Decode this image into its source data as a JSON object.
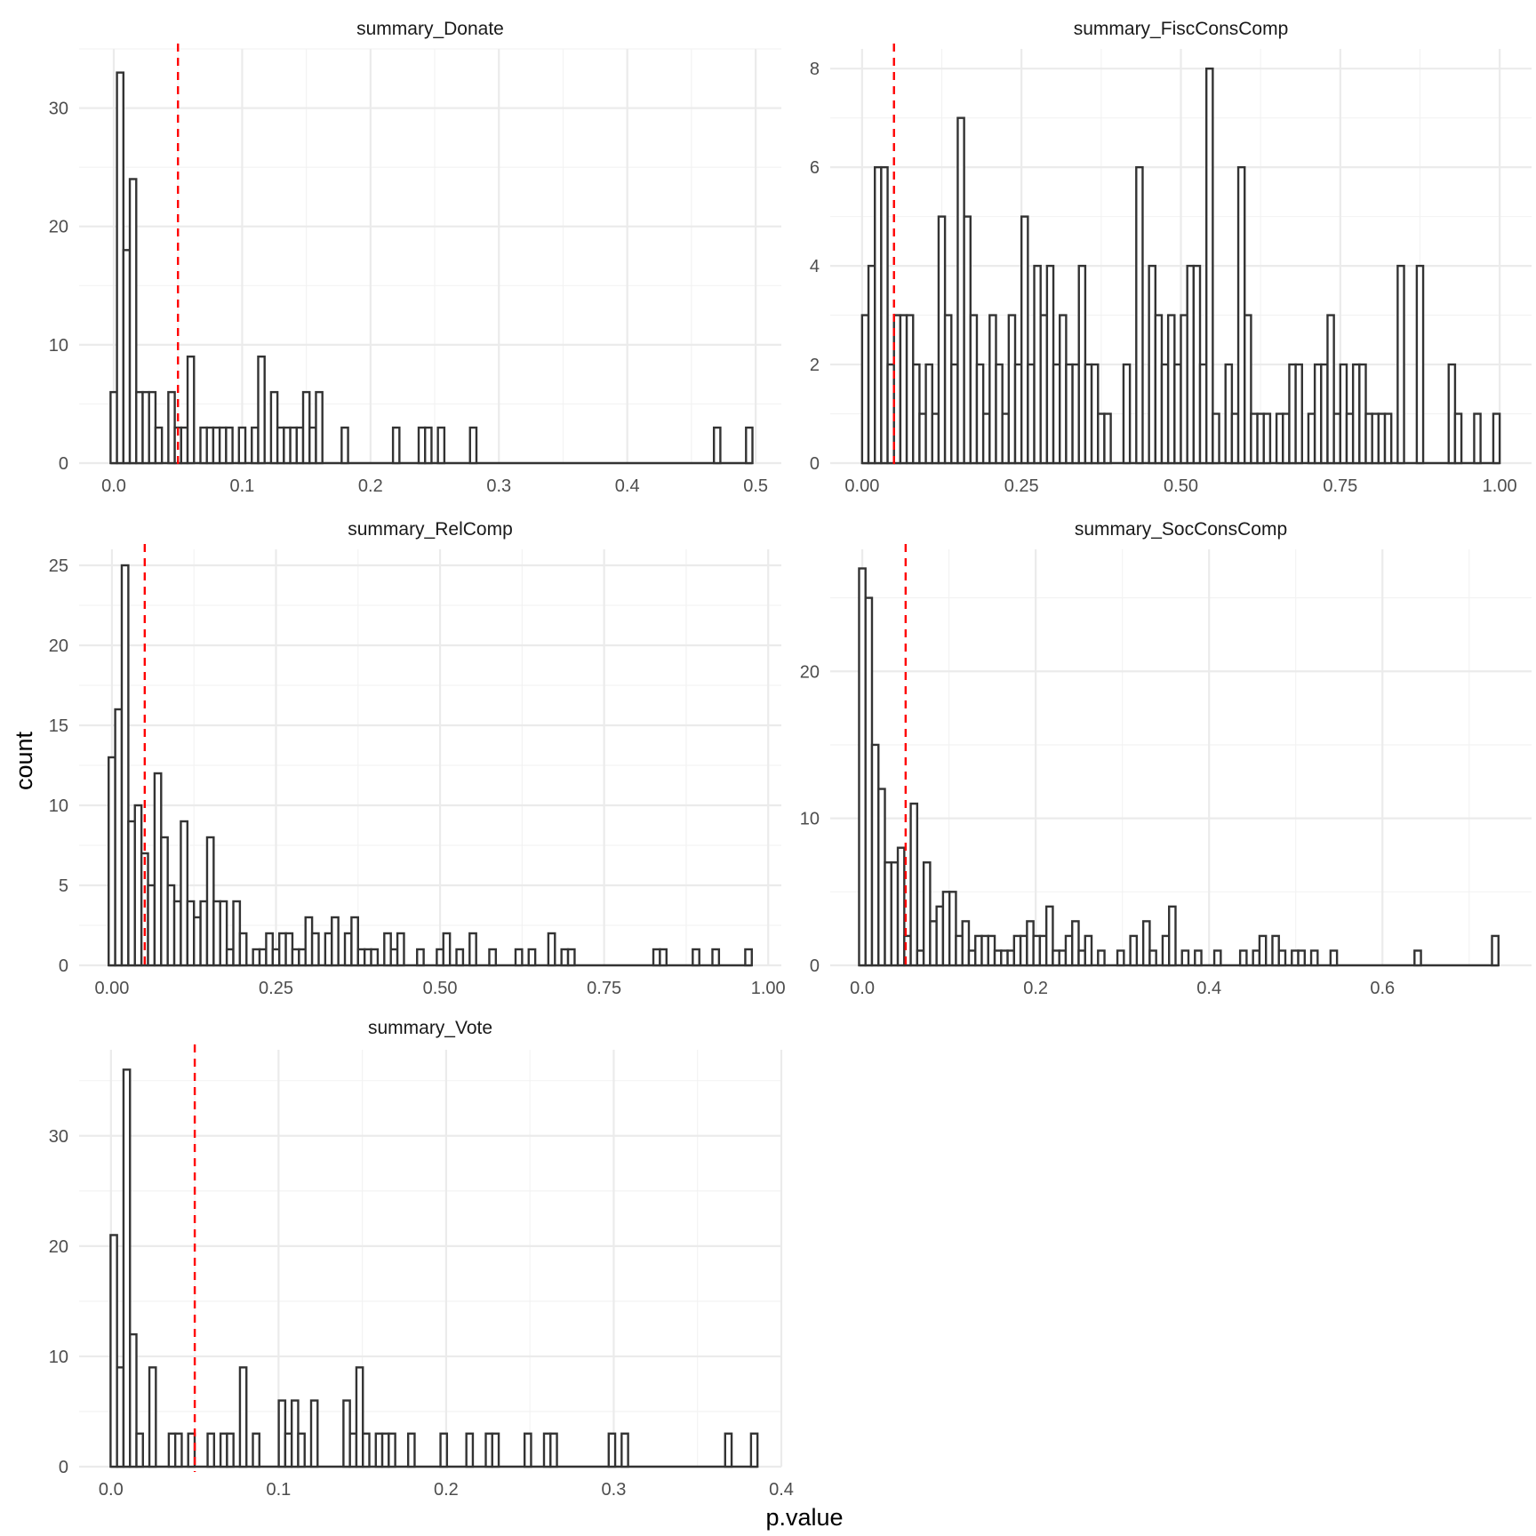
{
  "figure": {
    "xlabel": "p.value",
    "ylabel": "count",
    "reference_line": {
      "x": 0.05,
      "color": "#ff0000",
      "style": "dashed"
    },
    "bar_outline_color": "#333333",
    "bar_fill_color": "#ffffff"
  },
  "chart_data": [
    {
      "type": "bar",
      "title": "summary_Donate",
      "xlabel": "p.value",
      "ylabel": "count",
      "bin_width": 0.005,
      "first_bin_center": 0.0,
      "counts": [
        6,
        33,
        18,
        24,
        6,
        6,
        6,
        3,
        0,
        6,
        3,
        3,
        9,
        0,
        3,
        3,
        3,
        3,
        3,
        0,
        3,
        0,
        3,
        9,
        0,
        6,
        3,
        3,
        3,
        3,
        6,
        3,
        6,
        0,
        0,
        0,
        3,
        0,
        0,
        0,
        0,
        0,
        0,
        0,
        3,
        0,
        0,
        0,
        3,
        3,
        0,
        3,
        0,
        0,
        0,
        0,
        3,
        0,
        0,
        0,
        0,
        0,
        0,
        0,
        0,
        0,
        0,
        0,
        0,
        0,
        0,
        0,
        0,
        0,
        0,
        0,
        0,
        0,
        0,
        0,
        0,
        0,
        0,
        0,
        0,
        0,
        0,
        0,
        0,
        0,
        0,
        0,
        0,
        0,
        3,
        0,
        0,
        0,
        0,
        3
      ],
      "xlim": [
        -0.027,
        0.52
      ],
      "ylim": [
        0,
        35
      ],
      "x_ticks": [
        0.0,
        0.1,
        0.2,
        0.3,
        0.4,
        0.5
      ],
      "x_tick_labels": [
        "0.0",
        "0.1",
        "0.2",
        "0.3",
        "0.4",
        "0.5"
      ],
      "y_ticks": [
        0,
        10,
        20,
        30
      ],
      "y_tick_labels": [
        "0",
        "10",
        "20",
        "30"
      ],
      "vline": 0.05
    },
    {
      "type": "bar",
      "title": "summary_FiscConsComp",
      "xlabel": "p.value",
      "ylabel": "count",
      "bin_width": 0.01,
      "first_bin_center": 0.005,
      "counts": [
        3,
        4,
        6,
        6,
        2,
        3,
        3,
        3,
        2,
        1,
        2,
        1,
        5,
        3,
        2,
        7,
        5,
        3,
        2,
        1,
        3,
        2,
        1,
        3,
        2,
        5,
        2,
        4,
        3,
        4,
        2,
        3,
        2,
        2,
        4,
        2,
        2,
        1,
        1,
        0,
        0,
        2,
        0,
        6,
        0,
        4,
        3,
        2,
        3,
        2,
        3,
        4,
        4,
        2,
        8,
        1,
        0,
        2,
        1,
        6,
        3,
        1,
        1,
        1,
        0,
        1,
        1,
        2,
        2,
        0,
        1,
        2,
        2,
        3,
        1,
        2,
        1,
        2,
        2,
        1,
        1,
        1,
        1,
        0,
        4,
        0,
        0,
        4,
        0,
        0,
        0,
        0,
        2,
        1,
        0,
        0,
        1,
        0,
        0,
        1
      ],
      "xlim": [
        -0.05,
        1.05
      ],
      "ylim": [
        0,
        8.4
      ],
      "x_ticks": [
        0.0,
        0.25,
        0.5,
        0.75,
        1.0
      ],
      "x_tick_labels": [
        "0.00",
        "0.25",
        "0.50",
        "0.75",
        "1.00"
      ],
      "y_ticks": [
        0,
        2,
        4,
        6,
        8
      ],
      "y_tick_labels": [
        "0",
        "2",
        "4",
        "6",
        "8"
      ],
      "vline": 0.05
    },
    {
      "type": "bar",
      "title": "summary_RelComp",
      "xlabel": "p.value",
      "ylabel": "count",
      "bin_width": 0.01,
      "first_bin_center": 0.0,
      "counts": [
        13,
        16,
        25,
        9,
        10,
        7,
        5,
        12,
        8,
        5,
        4,
        9,
        4,
        3,
        4,
        8,
        4,
        4,
        1,
        4,
        2,
        0,
        1,
        1,
        2,
        1,
        2,
        2,
        1,
        1,
        3,
        2,
        0,
        2,
        3,
        0,
        2,
        3,
        1,
        1,
        1,
        0,
        2,
        1,
        2,
        0,
        0,
        1,
        0,
        0,
        1,
        2,
        0,
        1,
        0,
        2,
        0,
        0,
        1,
        0,
        0,
        0,
        1,
        0,
        1,
        0,
        0,
        2,
        0,
        1,
        1,
        0,
        0,
        0,
        0,
        0,
        0,
        0,
        0,
        0,
        0,
        0,
        0,
        1,
        1,
        0,
        0,
        0,
        0,
        1,
        0,
        0,
        1,
        0,
        0,
        0,
        0,
        1
      ],
      "xlim": [
        -0.05,
        1.02
      ],
      "ylim": [
        0,
        26
      ],
      "x_ticks": [
        0.0,
        0.25,
        0.5,
        0.75,
        1.0
      ],
      "x_tick_labels": [
        "0.00",
        "0.25",
        "0.50",
        "0.75",
        "1.00"
      ],
      "y_ticks": [
        0,
        5,
        10,
        15,
        20,
        25
      ],
      "y_tick_labels": [
        "0",
        "5",
        "10",
        "15",
        "20",
        "25"
      ],
      "vline": 0.05
    },
    {
      "type": "bar",
      "title": "summary_SocConsComp",
      "xlabel": "p.value",
      "ylabel": "count",
      "bin_width": 0.00745,
      "first_bin_center": 0.0,
      "counts": [
        27,
        25,
        15,
        12,
        7,
        7,
        8,
        2,
        11,
        1,
        7,
        3,
        4,
        5,
        5,
        2,
        3,
        1,
        2,
        2,
        2,
        1,
        1,
        1,
        2,
        2,
        3,
        2,
        2,
        4,
        1,
        1,
        2,
        3,
        1,
        2,
        0,
        1,
        0,
        0,
        1,
        0,
        2,
        0,
        3,
        1,
        0,
        2,
        4,
        0,
        1,
        0,
        1,
        0,
        0,
        1,
        0,
        0,
        0,
        1,
        0,
        1,
        2,
        0,
        2,
        1,
        0,
        1,
        1,
        0,
        1,
        0,
        0,
        1,
        0,
        0,
        0,
        0,
        0,
        0,
        0,
        0,
        0,
        0,
        0,
        0,
        1,
        0,
        0,
        0,
        0,
        0,
        0,
        0,
        0,
        0,
        0,
        0,
        2
      ],
      "xlim": [
        -0.037,
        0.772
      ],
      "ylim": [
        0,
        28.3
      ],
      "x_ticks": [
        0.0,
        0.2,
        0.4,
        0.6
      ],
      "x_tick_labels": [
        "0.0",
        "0.2",
        "0.4",
        "0.6"
      ],
      "y_ticks": [
        0,
        10,
        20
      ],
      "y_tick_labels": [
        "0",
        "10",
        "20"
      ],
      "vline": 0.05
    },
    {
      "type": "bar",
      "title": "summary_Vote",
      "xlabel": "p.value",
      "ylabel": "count",
      "bin_width": 0.00386,
      "first_bin_center": 0.0017,
      "counts": [
        21,
        9,
        36,
        12,
        3,
        0,
        9,
        0,
        0,
        3,
        3,
        0,
        3,
        0,
        0,
        3,
        0,
        3,
        3,
        0,
        9,
        0,
        3,
        0,
        0,
        0,
        6,
        3,
        6,
        3,
        0,
        6,
        0,
        0,
        0,
        0,
        6,
        3,
        9,
        3,
        0,
        3,
        3,
        3,
        0,
        0,
        3,
        0,
        0,
        0,
        0,
        3,
        0,
        0,
        0,
        3,
        0,
        0,
        3,
        3,
        0,
        0,
        0,
        0,
        3,
        0,
        0,
        3,
        3,
        0,
        0,
        0,
        0,
        0,
        0,
        0,
        0,
        3,
        0,
        3,
        0,
        0,
        0,
        0,
        0,
        0,
        0,
        0,
        0,
        0,
        0,
        0,
        0,
        0,
        0,
        3,
        0,
        0,
        0,
        3
      ],
      "xlim": [
        -0.019,
        0.4
      ],
      "ylim": [
        0,
        37.8
      ],
      "x_ticks": [
        0.0,
        0.1,
        0.2,
        0.3,
        0.4
      ],
      "x_tick_labels": [
        "0.0",
        "0.1",
        "0.2",
        "0.3",
        "0.4"
      ],
      "y_ticks": [
        0,
        10,
        20,
        30
      ],
      "y_tick_labels": [
        "0",
        "10",
        "20",
        "30"
      ],
      "vline": 0.05
    }
  ]
}
